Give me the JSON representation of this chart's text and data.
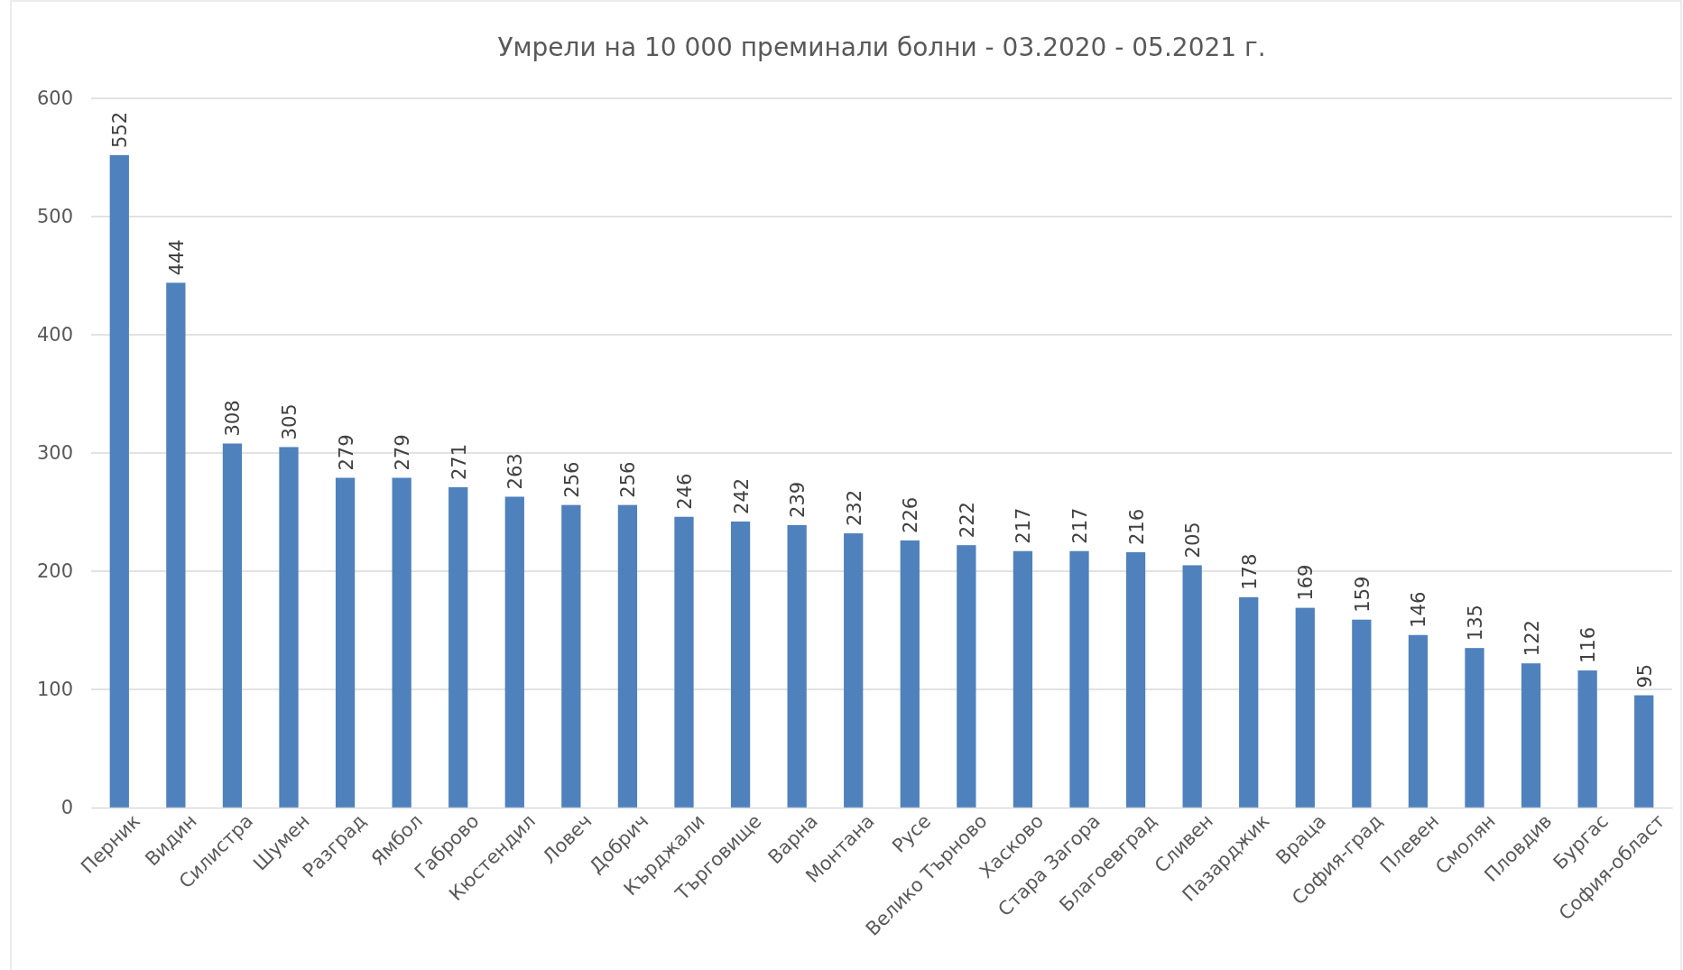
{
  "chart_data": {
    "type": "bar",
    "title": "Умрели на 10 000 преминали болни - 03.2020 - 05.2021 г.",
    "categories": [
      "Перник",
      "Видин",
      "Силистра",
      "Шумен",
      "Разград",
      "Ямбол",
      "Габрово",
      "Кюстендил",
      "Ловеч",
      "Добрич",
      "Кърджали",
      "Търговище",
      "Варна",
      "Монтана",
      "Русе",
      "Велико Търново",
      "Хасково",
      "Стара Загора",
      "Благоевград",
      "Сливен",
      "Пазарджик",
      "Враца",
      "София-град",
      "Плевен",
      "Смолян",
      "Пловдив",
      "Бургас",
      "София-област"
    ],
    "values": [
      552,
      444,
      308,
      305,
      279,
      279,
      271,
      263,
      256,
      256,
      246,
      242,
      239,
      232,
      226,
      222,
      217,
      217,
      216,
      205,
      178,
      169,
      159,
      146,
      135,
      122,
      116,
      95
    ],
    "color": "#4f81bd",
    "ylim": [
      0,
      600
    ],
    "yticks": [
      0,
      100,
      200,
      300,
      400,
      500,
      600
    ],
    "grid": "y",
    "data_labels": true
  }
}
